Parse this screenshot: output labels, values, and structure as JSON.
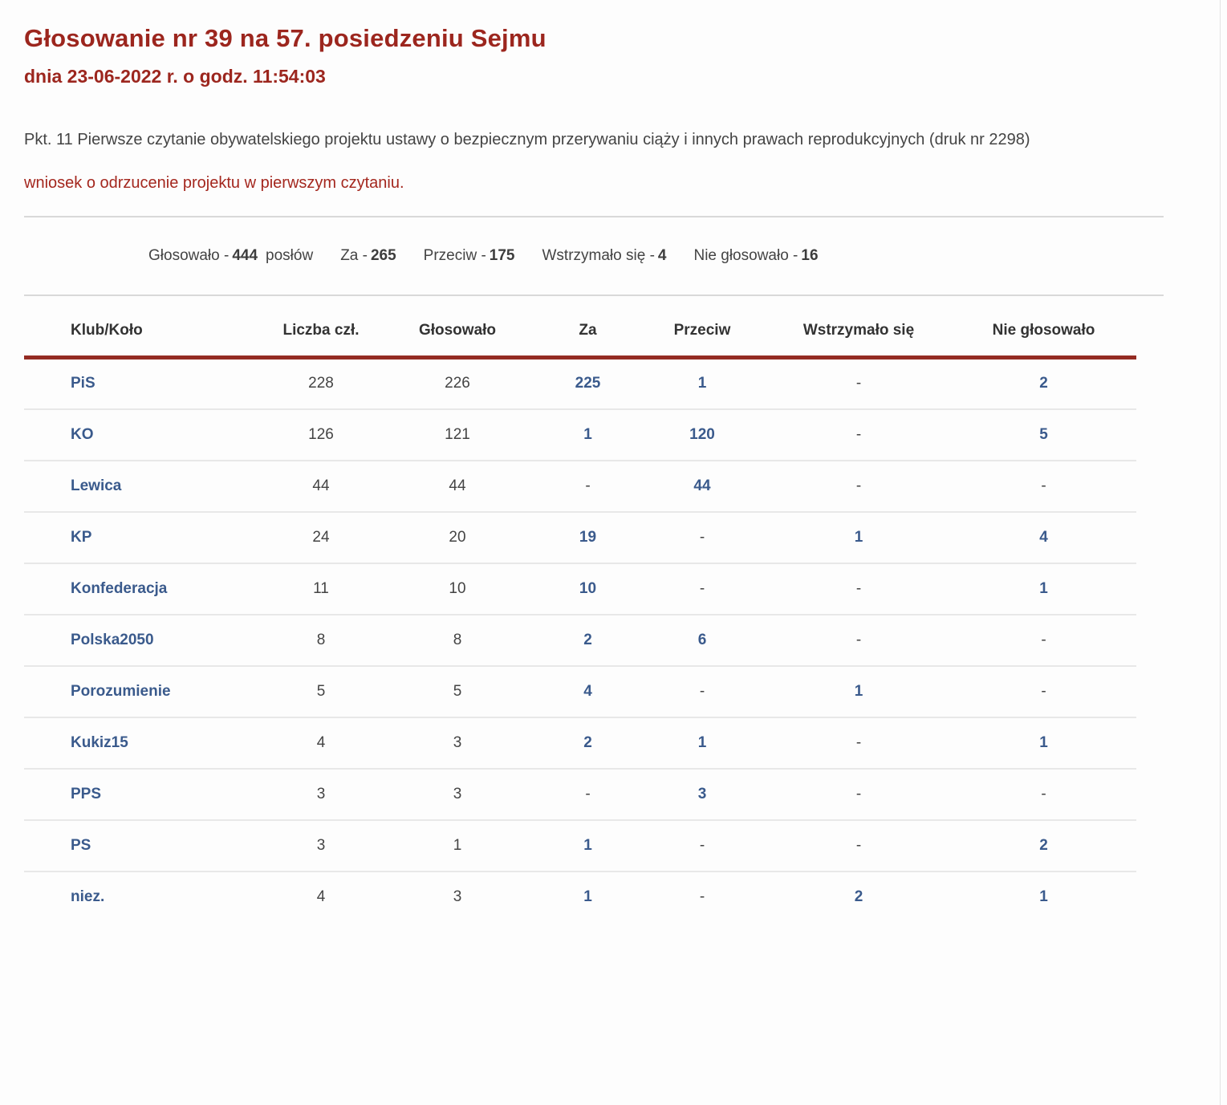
{
  "header": {
    "title": "Głosowanie nr 39 na 57. posiedzeniu Sejmu",
    "subtitle": "dnia 23-06-2022 r. o godz. 11:54:03",
    "description": "Pkt. 11 Pierwsze czytanie obywatelskiego projektu ustawy o bezpiecznym przerywaniu ciąży i innych prawach reprodukcyjnych (druk nr 2298)",
    "motion_link": "wniosek o odrzucenie projektu w pierwszym czytaniu."
  },
  "summary": {
    "items": [
      {
        "label": "Głosowało -",
        "value": "444",
        "suffix": "posłów"
      },
      {
        "label": "Za -",
        "value": "265",
        "suffix": ""
      },
      {
        "label": "Przeciw -",
        "value": "175",
        "suffix": ""
      },
      {
        "label": "Wstrzymało się -",
        "value": "4",
        "suffix": ""
      },
      {
        "label": "Nie głosowało -",
        "value": "16",
        "suffix": ""
      }
    ]
  },
  "table": {
    "columns": [
      "Klub/Koło",
      "Liczba czł.",
      "Głosowało",
      "Za",
      "Przeciw",
      "Wstrzymało się",
      "Nie głosowało"
    ],
    "rows": [
      {
        "klub": "PiS",
        "cells": [
          "228",
          "226",
          "225",
          "1",
          "-",
          "2"
        ]
      },
      {
        "klub": "KO",
        "cells": [
          "126",
          "121",
          "1",
          "120",
          "-",
          "5"
        ]
      },
      {
        "klub": "Lewica",
        "cells": [
          "44",
          "44",
          "-",
          "44",
          "-",
          "-"
        ]
      },
      {
        "klub": "KP",
        "cells": [
          "24",
          "20",
          "19",
          "-",
          "1",
          "4"
        ]
      },
      {
        "klub": "Konfederacja",
        "cells": [
          "11",
          "10",
          "10",
          "-",
          "-",
          "1"
        ]
      },
      {
        "klub": "Polska2050",
        "cells": [
          "8",
          "8",
          "2",
          "6",
          "-",
          "-"
        ]
      },
      {
        "klub": "Porozumienie",
        "cells": [
          "5",
          "5",
          "4",
          "-",
          "1",
          "-"
        ]
      },
      {
        "klub": "Kukiz15",
        "cells": [
          "4",
          "3",
          "2",
          "1",
          "-",
          "1"
        ]
      },
      {
        "klub": "PPS",
        "cells": [
          "3",
          "3",
          "-",
          "3",
          "-",
          "-"
        ]
      },
      {
        "klub": "PS",
        "cells": [
          "3",
          "1",
          "1",
          "-",
          "-",
          "2"
        ]
      },
      {
        "klub": "niez.",
        "cells": [
          "4",
          "3",
          "1",
          "-",
          "2",
          "1"
        ]
      }
    ]
  },
  "colors": {
    "title-red": "#9c261e",
    "link-red": "#a4271e",
    "accent-red": "#942b23",
    "link-blue": "#3a5a8c",
    "text-gray": "#444444",
    "text-dark": "#3d3d3d",
    "separator": "#d9d9d9",
    "row-separator": "#e8e8e8"
  }
}
